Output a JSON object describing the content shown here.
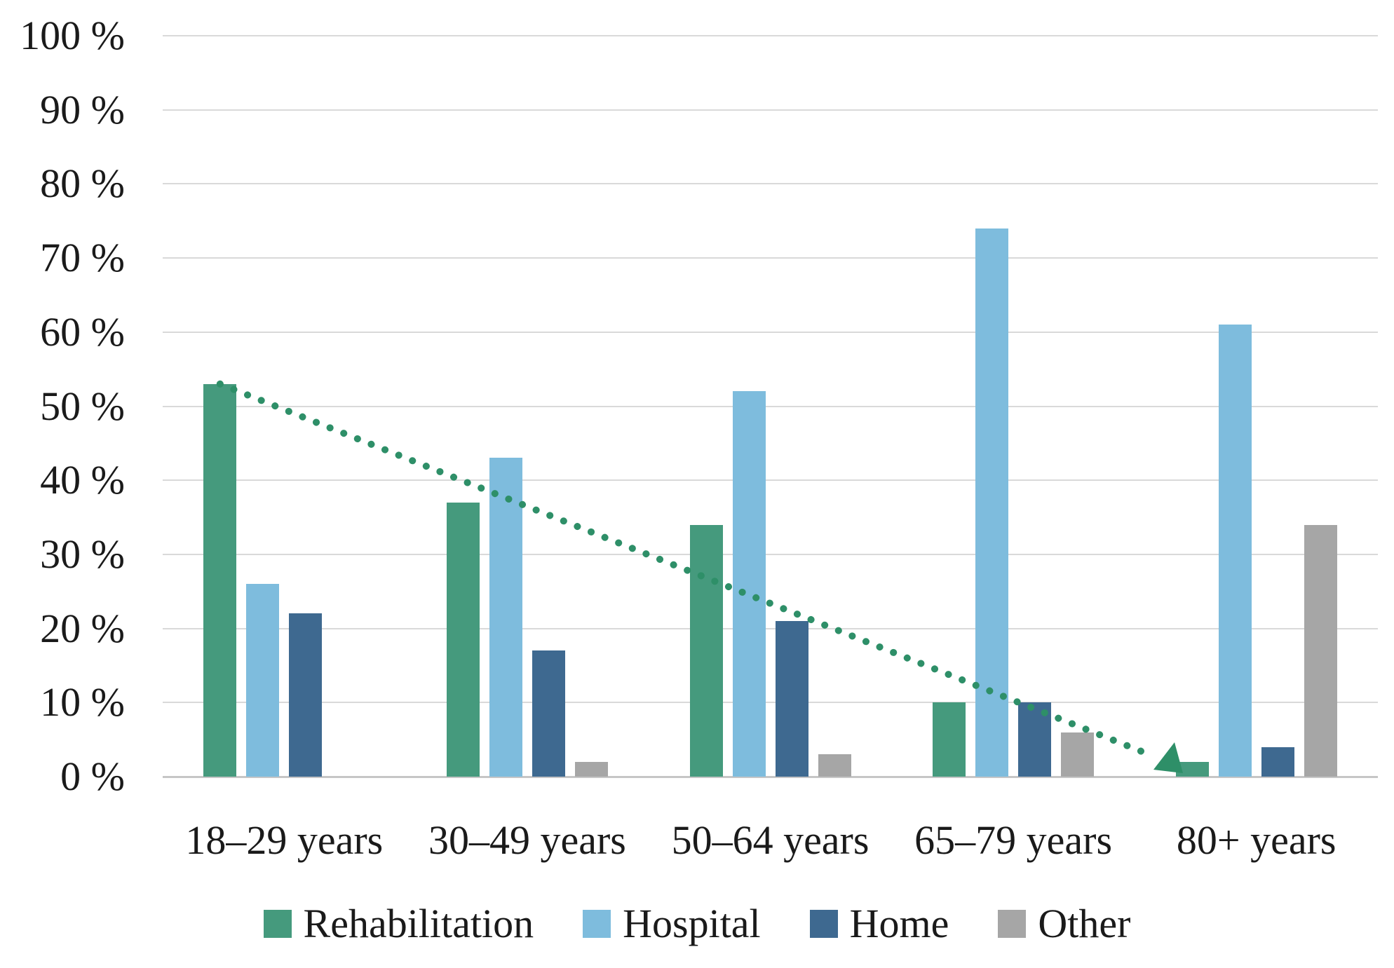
{
  "chart_data": {
    "type": "bar",
    "title": "",
    "categories": [
      "18–29 years",
      "30–49 years",
      "50–64 years",
      "65–79 years",
      "80+ years"
    ],
    "series": [
      {
        "name": "Rehabilitation",
        "color": "#459A7D",
        "values": [
          53,
          37,
          34,
          10,
          2
        ]
      },
      {
        "name": "Hospital",
        "color": "#7EBCDD",
        "values": [
          26,
          43,
          52,
          74,
          61
        ]
      },
      {
        "name": "Home",
        "color": "#3E6990",
        "values": [
          22,
          17,
          21,
          10,
          4
        ]
      },
      {
        "name": "Other",
        "color": "#A6A6A6",
        "values": [
          0,
          2,
          3,
          6,
          34
        ]
      }
    ],
    "trendline": {
      "for_series": "Rehabilitation",
      "style": "dotted",
      "color": "#2E8F68",
      "start_value": 53,
      "end_value": 2,
      "arrow_end": true
    },
    "y_axis": {
      "min": 0,
      "max": 100,
      "step": 10,
      "tick_suffix": " %",
      "tick_labels_top_to_bottom": [
        "100 %",
        "90 %",
        "80 %",
        "70 %",
        "60 %",
        "50 %",
        "40 %",
        "30 %",
        "20 %",
        "10 %",
        "0 %"
      ]
    },
    "grid": true,
    "gridline_color": "#D9D9D9",
    "axis_line_color": "#C6C6C6",
    "background": "#FFFFFF",
    "legend_position": "bottom",
    "legend": [
      {
        "label": "Rehabilitation",
        "color": "#459A7D"
      },
      {
        "label": "Hospital",
        "color": "#7EBCDD"
      },
      {
        "label": "Home",
        "color": "#3E6990"
      },
      {
        "label": "Other",
        "color": "#A6A6A6"
      }
    ]
  }
}
